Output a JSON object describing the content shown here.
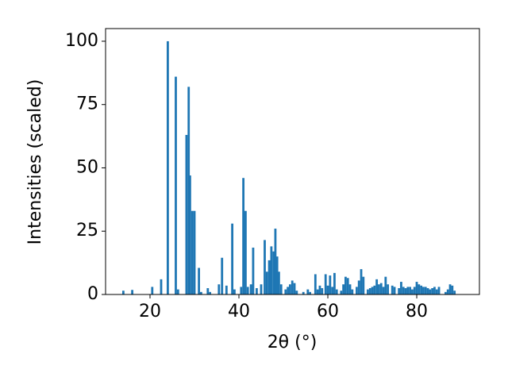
{
  "chart_data": {
    "type": "bar",
    "color": "#1f77b4",
    "xlabel": "2θ (°)",
    "ylabel": "Intensities (scaled)",
    "x": [
      14.0,
      16.0,
      20.5,
      22.5,
      24.0,
      25.8,
      26.3,
      28.2,
      28.7,
      29.0,
      29.5,
      30.0,
      31.0,
      31.5,
      33.0,
      33.5,
      35.5,
      36.2,
      37.2,
      38.5,
      39.0,
      40.5,
      41.0,
      41.5,
      42.0,
      42.7,
      43.2,
      44.0,
      45.0,
      45.8,
      46.3,
      46.8,
      47.3,
      47.8,
      48.2,
      48.6,
      49.0,
      49.5,
      50.5,
      51.0,
      51.5,
      52.0,
      52.5,
      53.0,
      54.5,
      55.5,
      56.0,
      57.2,
      57.7,
      58.2,
      58.7,
      59.5,
      60.0,
      60.5,
      61.0,
      61.5,
      62.0,
      63.0,
      63.5,
      64.0,
      64.5,
      65.0,
      65.5,
      66.5,
      67.0,
      67.5,
      68.0,
      69.0,
      69.5,
      70.0,
      70.5,
      71.0,
      71.5,
      72.0,
      72.5,
      73.0,
      73.5,
      74.5,
      75.0,
      76.0,
      76.5,
      77.0,
      77.5,
      78.0,
      78.5,
      79.0,
      79.5,
      80.0,
      80.5,
      81.0,
      81.5,
      82.0,
      82.5,
      83.0,
      83.5,
      84.0,
      84.5,
      85.0,
      86.5,
      87.0,
      87.5,
      88.0,
      88.5
    ],
    "values": [
      1.5,
      1.8,
      3,
      6,
      100,
      86,
      2,
      63,
      82,
      47,
      33,
      33,
      10.5,
      1,
      2.5,
      1,
      4,
      14.5,
      3.5,
      28,
      2,
      3,
      46,
      33,
      3,
      4,
      18.5,
      2.5,
      4,
      21.5,
      9,
      13.5,
      19,
      17,
      26,
      15,
      9,
      4,
      2,
      3,
      4,
      5.5,
      4.5,
      1.5,
      1,
      2,
      1,
      8,
      2,
      3.5,
      2.5,
      8,
      3.5,
      7.5,
      3,
      8.5,
      2,
      1.5,
      4,
      7,
      6.5,
      4,
      2,
      3,
      5.5,
      10,
      7,
      2,
      2.5,
      3,
      3.5,
      6,
      4,
      4.5,
      3,
      7,
      4,
      3.5,
      3,
      2.5,
      5,
      3,
      2.5,
      3,
      3,
      2,
      3,
      5,
      4,
      3.5,
      3,
      3,
      2.5,
      2,
      2.5,
      3,
      2,
      3,
      1,
      2,
      4,
      3.5,
      1.5
    ],
    "xlim": [
      10,
      94.1
    ],
    "ylim": [
      0,
      105
    ],
    "xticks": [
      20,
      40,
      60,
      80
    ],
    "yticks": [
      0,
      25,
      50,
      75,
      100
    ]
  }
}
